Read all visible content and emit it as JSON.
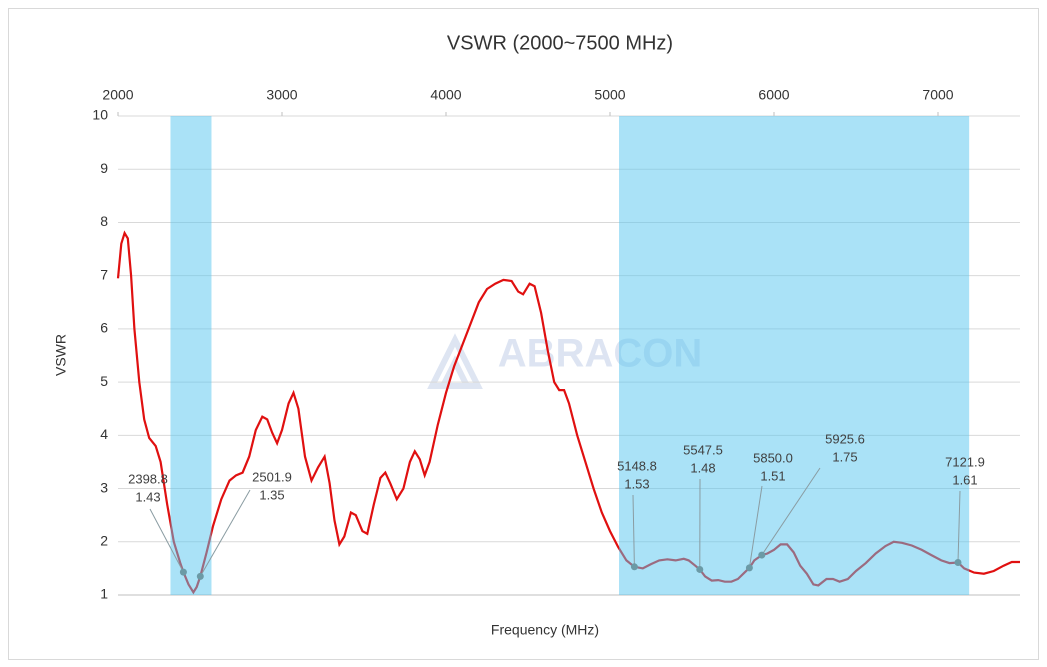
{
  "chart_data": {
    "type": "line",
    "title": "VSWR (2000~7500 MHz)",
    "x_label": "Frequency (MHz)",
    "y_label": "VSWR",
    "watermark": "ABRACON",
    "xlim": [
      2000,
      7500
    ],
    "xticks": [
      2000,
      3000,
      4000,
      5000,
      6000,
      7000
    ],
    "ylim": [
      1,
      10
    ],
    "yticks": [
      1,
      2,
      3,
      4,
      5,
      6,
      7,
      8,
      9,
      10
    ],
    "grid": true,
    "bands": [
      [
        2320,
        2570
      ],
      [
        5055,
        7190
      ]
    ],
    "band_color": "#56c5f0",
    "series": [
      {
        "name": "VSWR",
        "color": "#e01010",
        "x": [
          2000,
          2020,
          2040,
          2060,
          2080,
          2100,
          2130,
          2160,
          2190,
          2230,
          2260,
          2300,
          2340,
          2380,
          2398.8,
          2430,
          2460,
          2480,
          2501.9,
          2540,
          2580,
          2630,
          2680,
          2720,
          2760,
          2800,
          2840,
          2880,
          2910,
          2940,
          2970,
          3000,
          3040,
          3070,
          3100,
          3140,
          3180,
          3220,
          3260,
          3290,
          3320,
          3350,
          3380,
          3420,
          3450,
          3490,
          3520,
          3560,
          3600,
          3630,
          3660,
          3700,
          3740,
          3780,
          3810,
          3840,
          3870,
          3900,
          3950,
          4000,
          4050,
          4100,
          4150,
          4200,
          4250,
          4300,
          4350,
          4400,
          4440,
          4470,
          4510,
          4540,
          4580,
          4620,
          4660,
          4690,
          4720,
          4750,
          4800,
          4850,
          4900,
          4950,
          5000,
          5050,
          5100,
          5148.8,
          5200,
          5250,
          5300,
          5350,
          5400,
          5450,
          5480,
          5520,
          5547.5,
          5580,
          5620,
          5660,
          5700,
          5740,
          5780,
          5820,
          5850,
          5880,
          5925.6,
          5960,
          6000,
          6040,
          6080,
          6120,
          6160,
          6200,
          6240,
          6270,
          6320,
          6360,
          6400,
          6450,
          6500,
          6560,
          6620,
          6680,
          6730,
          6780,
          6840,
          6900,
          6960,
          7020,
          7070,
          7121.9,
          7160,
          7220,
          7280,
          7340,
          7400,
          7450,
          7500
        ],
        "values": [
          6.95,
          7.6,
          7.8,
          7.7,
          7.0,
          6.0,
          5.0,
          4.3,
          3.95,
          3.8,
          3.5,
          2.7,
          2.0,
          1.6,
          1.43,
          1.2,
          1.05,
          1.15,
          1.35,
          1.8,
          2.3,
          2.8,
          3.15,
          3.25,
          3.3,
          3.6,
          4.1,
          4.35,
          4.3,
          4.05,
          3.85,
          4.1,
          4.6,
          4.8,
          4.5,
          3.6,
          3.15,
          3.4,
          3.6,
          3.1,
          2.4,
          1.95,
          2.1,
          2.55,
          2.5,
          2.2,
          2.15,
          2.7,
          3.2,
          3.3,
          3.1,
          2.8,
          3.0,
          3.5,
          3.7,
          3.55,
          3.25,
          3.5,
          4.2,
          4.8,
          5.3,
          5.7,
          6.1,
          6.5,
          6.75,
          6.85,
          6.92,
          6.9,
          6.7,
          6.65,
          6.85,
          6.8,
          6.3,
          5.6,
          5.0,
          4.85,
          4.85,
          4.6,
          4.0,
          3.5,
          3.0,
          2.55,
          2.2,
          1.9,
          1.65,
          1.53,
          1.5,
          1.58,
          1.65,
          1.67,
          1.65,
          1.68,
          1.65,
          1.55,
          1.48,
          1.35,
          1.27,
          1.28,
          1.25,
          1.25,
          1.3,
          1.42,
          1.51,
          1.65,
          1.75,
          1.78,
          1.85,
          1.95,
          1.95,
          1.8,
          1.55,
          1.4,
          1.2,
          1.18,
          1.3,
          1.3,
          1.25,
          1.3,
          1.45,
          1.6,
          1.78,
          1.92,
          2.0,
          1.98,
          1.93,
          1.85,
          1.75,
          1.65,
          1.6,
          1.61,
          1.5,
          1.42,
          1.4,
          1.45,
          1.55,
          1.62,
          1.62
        ]
      }
    ],
    "markers": {
      "color": "#6b9aa6",
      "x": [
        2398.8,
        2501.9,
        5148.8,
        5547.5,
        5850.0,
        5925.6,
        7121.9
      ],
      "x_labels": [
        "2398.8",
        "2501.9",
        "5148.8",
        "5547.5",
        "5850.0",
        "5925.6",
        "7121.9"
      ],
      "values": [
        1.43,
        1.35,
        1.53,
        1.48,
        1.51,
        1.75,
        1.61
      ]
    }
  }
}
